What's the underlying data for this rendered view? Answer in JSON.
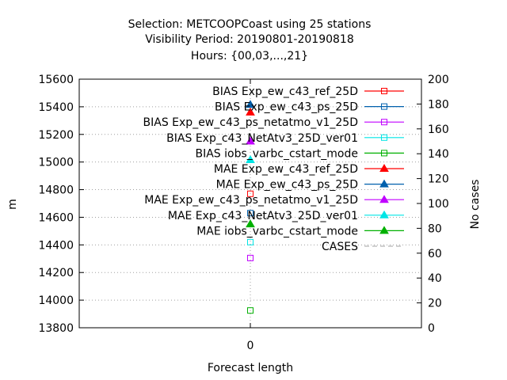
{
  "chart_data": {
    "type": "scatter",
    "title_lines": [
      "Selection: METCOOPCoast using    25 stations",
      "Visibility   Period: 20190801-20190818",
      "Hours: {00,03,...,21}"
    ],
    "xlabel": "Forecast length",
    "ylabel": "m",
    "y2label": "No cases",
    "x_ticks": [
      "0"
    ],
    "ylim": [
      13800,
      15600
    ],
    "y_ticks": [
      13800,
      14000,
      14200,
      14400,
      14600,
      14800,
      15000,
      15200,
      15400,
      15600
    ],
    "y2lim": [
      0,
      200
    ],
    "y2_ticks": [
      0,
      20,
      40,
      60,
      80,
      100,
      120,
      140,
      160,
      180,
      200
    ],
    "grid": true,
    "legend_position": "top-right",
    "series": [
      {
        "name": "BIAS Exp_ew_c43_ref_25D",
        "color": "#ff0000",
        "marker": "square-open",
        "x": 0,
        "y": 14770
      },
      {
        "name": "BIAS Exp_ew_c43_ps_25D",
        "color": "#0060ad",
        "marker": "square-open",
        "x": 0,
        "y": 14630
      },
      {
        "name": "BIAS Exp_ew_c43_ps_netatmo_v1_25D",
        "color": "#c000ff",
        "marker": "square-open",
        "x": 0,
        "y": 14305
      },
      {
        "name": "BIAS Exp_c43_NetAtv3_25D_ver01",
        "color": "#00e5e5",
        "marker": "square-open",
        "x": 0,
        "y": 14420
      },
      {
        "name": "BIAS iobs_varbc_cstart_mode",
        "color": "#00b000",
        "marker": "square-open",
        "x": 0,
        "y": 13925
      },
      {
        "name": "MAE Exp_ew_c43_ref_25D",
        "color": "#ff0000",
        "marker": "triangle",
        "x": 0,
        "y": 15360
      },
      {
        "name": "MAE Exp_ew_c43_ps_25D",
        "color": "#0060ad",
        "marker": "triangle",
        "x": 0,
        "y": 15415
      },
      {
        "name": "MAE Exp_ew_c43_ps_netatmo_v1_25D",
        "color": "#c000ff",
        "marker": "triangle",
        "x": 0,
        "y": 15150
      },
      {
        "name": "MAE Exp_c43_NetAtv3_25D_ver01",
        "color": "#00e5e5",
        "marker": "triangle",
        "x": 0,
        "y": 15015
      },
      {
        "name": "MAE iobs_varbc_cstart_mode",
        "color": "#00b000",
        "marker": "triangle",
        "x": 0,
        "y": 14550
      },
      {
        "name": "CASES",
        "color": "#a0a0a0",
        "marker": "dashed-line",
        "axis": "y2",
        "x": 0,
        "y": 200
      }
    ]
  }
}
